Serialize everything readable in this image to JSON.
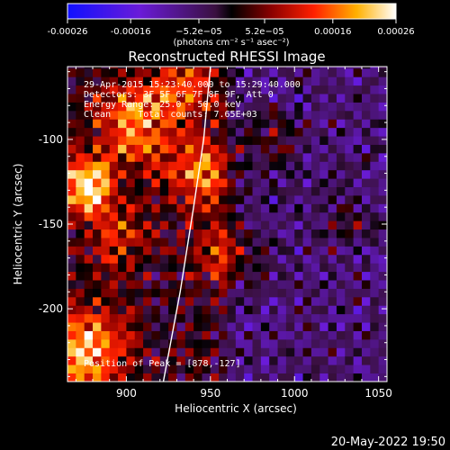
{
  "chart_data": {
    "type": "heatmap",
    "title": "Reconstructed RHESSI Image",
    "xlabel": "Heliocentric X (arcsec)",
    "ylabel": "Heliocentric Y (arcsec)",
    "xlim": [
      865,
      1055
    ],
    "ylim": [
      -243,
      -57
    ],
    "x_ticks": [
      900,
      950,
      1000,
      1050
    ],
    "y_ticks": [
      -100,
      -150,
      -200
    ],
    "colorbar": {
      "ticks": [
        "-0.00026",
        "-0.00016",
        "−5.2e−05",
        "5.2e−05",
        "0.00016",
        "0.00026"
      ],
      "tick_values": [
        -0.00026,
        -0.00016,
        -5.2e-05,
        5.2e-05,
        0.00016,
        0.00026
      ],
      "unit_label": "(photons cm⁻² s⁻¹ asec⁻²)",
      "range": [
        -0.00026,
        0.00026
      ]
    },
    "annotations": [
      "29-Apr-2015 15:23:40.000 to 15:29:40.000",
      "Detectors: 3F 5F 6F 7F 8F 9F, Att 0",
      "Energy Range: 25.0 - 50.0 keV",
      "Clean     Total counts: 7.65E+03",
      "Position of Peak = [878,-127]"
    ],
    "peak": {
      "x": 878,
      "y": -127
    },
    "limb_curve": [
      [
        922,
        -243
      ],
      [
        932,
        -190
      ],
      [
        940,
        -140
      ],
      [
        946,
        -100
      ],
      [
        950,
        -57
      ]
    ],
    "hotspots": [
      {
        "x": 878,
        "y": -127,
        "value": 0.00026,
        "radius": 12
      },
      {
        "x": 905,
        "y": -90,
        "value": 0.00018,
        "radius": 16
      },
      {
        "x": 945,
        "y": -120,
        "value": 0.00017,
        "radius": 15
      },
      {
        "x": 935,
        "y": -70,
        "value": 0.00014,
        "radius": 14
      },
      {
        "x": 875,
        "y": -225,
        "value": 0.00022,
        "radius": 18
      },
      {
        "x": 960,
        "y": -165,
        "value": 0.00012,
        "radius": 14
      },
      {
        "x": 895,
        "y": -160,
        "value": 0.0001,
        "radius": 14
      },
      {
        "x": 990,
        "y": -100,
        "value": 8e-05,
        "radius": 12
      },
      {
        "x": 1030,
        "y": -150,
        "value": 6e-05,
        "radius": 10
      }
    ]
  },
  "footer": {
    "timestamp": "20-May-2022 19:50"
  },
  "colors": {
    "background": "#000000",
    "text": "#ffffff",
    "limb": "#ffffff"
  }
}
